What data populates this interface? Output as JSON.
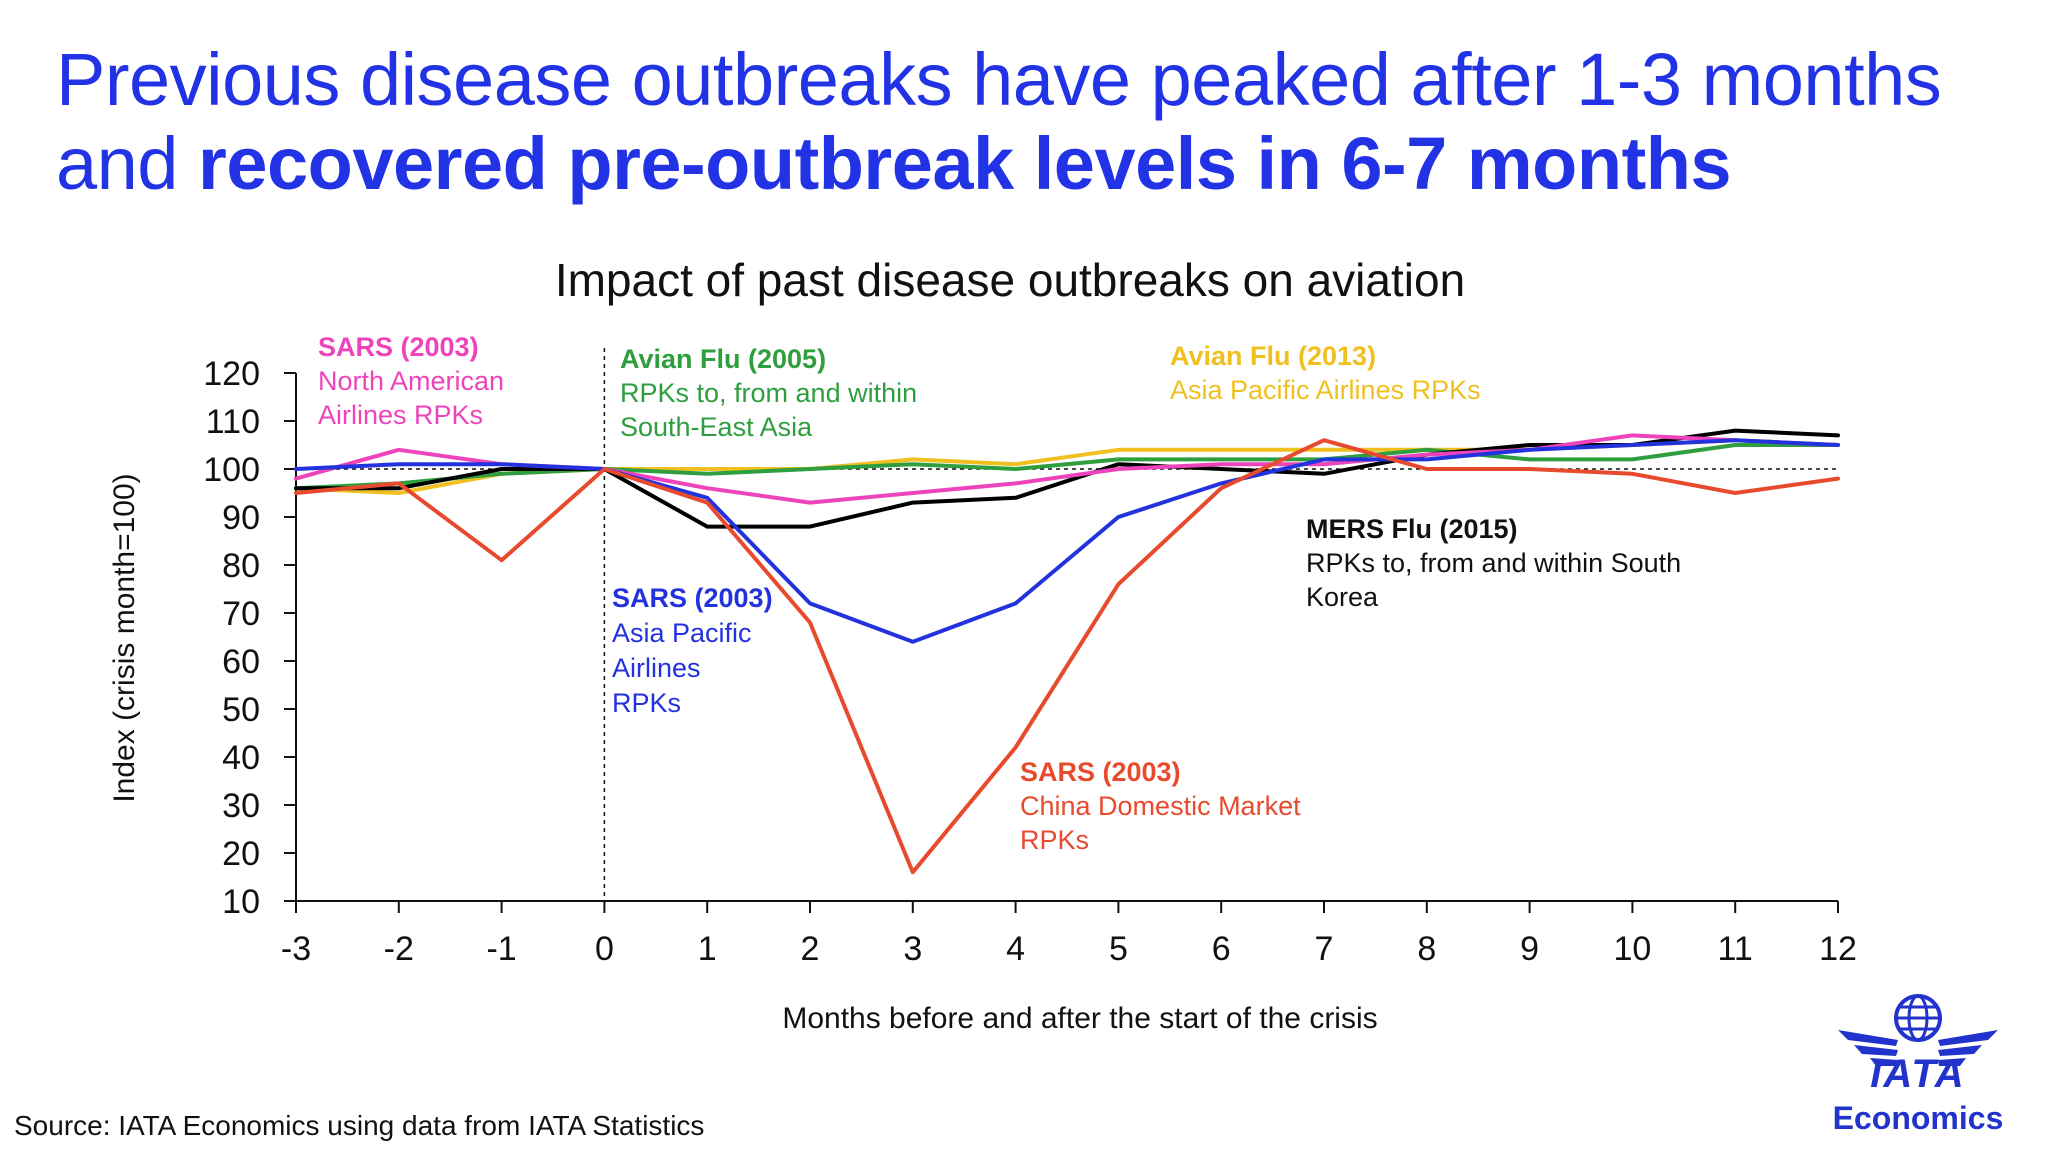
{
  "headline": {
    "line1": "Previous disease outbreaks have peaked after 1-3 months",
    "line2_prefix": "and ",
    "line2_bold": "recovered pre-outbreak levels in 6-7 months"
  },
  "source": "Source: IATA Economics using data from IATA Statistics",
  "logo": {
    "brand": "IATA",
    "unit": "Economics",
    "icon": "iata-globe-wings-icon"
  },
  "chart_data": {
    "type": "line",
    "title": "Impact of past disease outbreaks on aviation",
    "xlabel": "Months before and after the start of the crisis",
    "ylabel": "Index (crisis month=100)",
    "x": [
      -3,
      -2,
      -1,
      0,
      1,
      2,
      3,
      4,
      5,
      6,
      7,
      8,
      9,
      10,
      11,
      12
    ],
    "xlim": [
      -3,
      12
    ],
    "ylim": [
      10,
      120
    ],
    "yticks": [
      10,
      20,
      30,
      40,
      50,
      60,
      70,
      80,
      90,
      100,
      110,
      120
    ],
    "reference_line": 100,
    "crisis_marker_x": 0,
    "series": [
      {
        "id": "avian2013",
        "color": "#f0c020",
        "values": [
          96,
          95,
          99,
          100,
          100,
          100,
          102,
          101,
          104,
          104,
          104,
          104,
          104,
          105,
          106,
          105
        ]
      },
      {
        "id": "avian2005",
        "color": "#2e9e3e",
        "values": [
          96,
          97,
          99,
          100,
          99,
          100,
          101,
          100,
          102,
          102,
          102,
          104,
          102,
          102,
          105,
          105
        ]
      },
      {
        "id": "mers2015",
        "color": "#000000",
        "values": [
          96,
          96,
          100,
          100,
          88,
          88,
          93,
          94,
          101,
          100,
          99,
          103,
          105,
          105,
          108,
          107
        ]
      },
      {
        "id": "sars_na",
        "color": "#ee44bb",
        "values": [
          98,
          104,
          101,
          100,
          96,
          93,
          95,
          97,
          100,
          101,
          101,
          103,
          104,
          107,
          106,
          105
        ]
      },
      {
        "id": "sars_ap",
        "color": "#2233dd",
        "values": [
          100,
          101,
          101,
          100,
          94,
          72,
          64,
          72,
          90,
          97,
          102,
          102,
          104,
          105,
          106,
          105
        ]
      },
      {
        "id": "sars_china",
        "color": "#e84a2e",
        "values": [
          95,
          97,
          81,
          100,
          93,
          68,
          16,
          42,
          76,
          96,
          106,
          100,
          100,
          99,
          95,
          98
        ]
      }
    ],
    "annotations": [
      {
        "id": "sars_na",
        "title": "SARS (2003)",
        "lines": [
          "North American",
          "Airlines RPKs"
        ],
        "color": "#ee44bb"
      },
      {
        "id": "avian2005",
        "title": "Avian Flu (2005)",
        "lines": [
          "RPKs to, from and within",
          "South-East Asia"
        ],
        "color": "#2e9e3e"
      },
      {
        "id": "avian2013",
        "title": "Avian Flu (2013)",
        "lines": [
          "Asia Pacific Airlines RPKs"
        ],
        "color": "#f0c020"
      },
      {
        "id": "mers2015",
        "title": "MERS Flu (2015)",
        "lines": [
          "RPKs to, from and within South",
          "Korea"
        ],
        "color": "#111111"
      },
      {
        "id": "sars_ap",
        "title": "SARS (2003)",
        "lines": [
          "Asia Pacific",
          "Airlines",
          "RPKs"
        ],
        "color": "#2233dd"
      },
      {
        "id": "sars_china",
        "title": "SARS (2003)",
        "lines": [
          "China Domestic Market",
          "RPKs"
        ],
        "color": "#e84a2e"
      }
    ]
  }
}
